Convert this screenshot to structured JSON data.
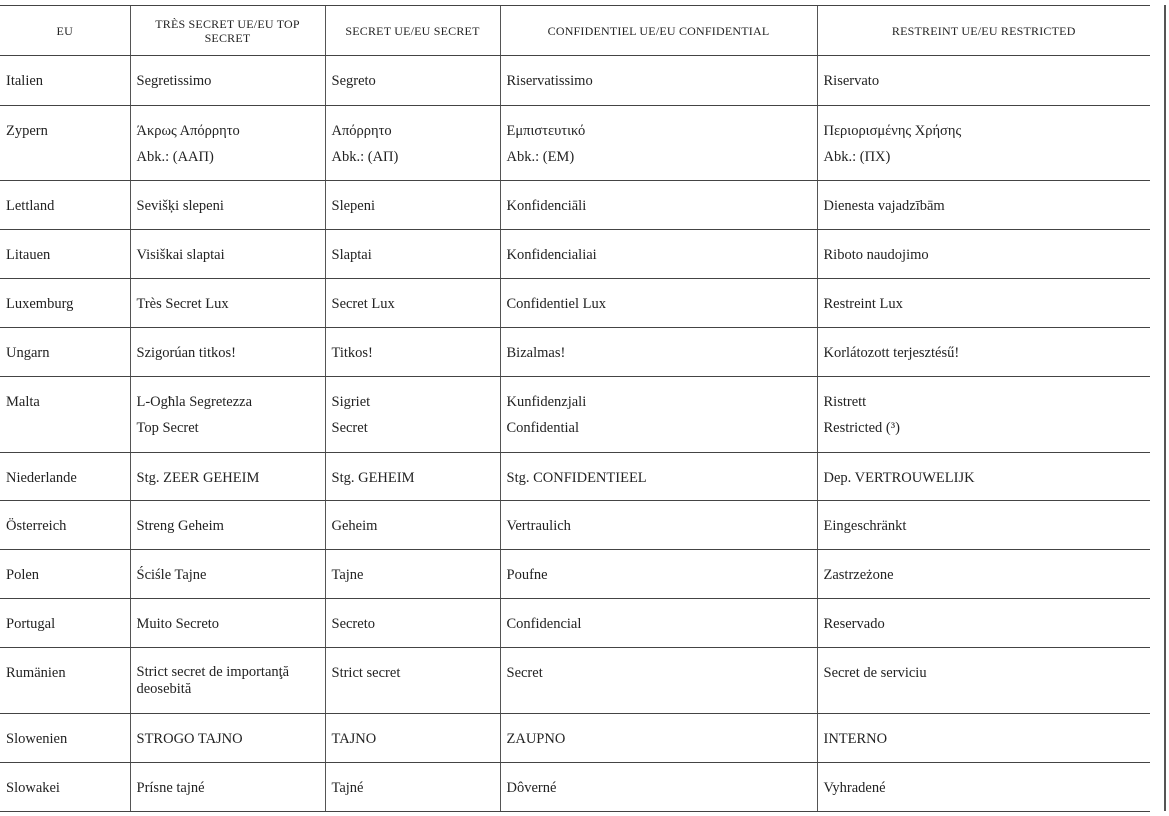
{
  "headers": [
    "EU",
    "TRÈS SECRET UE/EU TOP SECRET",
    "SECRET UE/EU SECRET",
    "CONFIDENTIEL UE/EU CONFIDENTIAL",
    "RESTREINT UE/EU RESTRICTED"
  ],
  "rows": [
    {
      "country": "Italien",
      "cells": [
        [
          "Segretissimo"
        ],
        [
          "Segreto"
        ],
        [
          "Riservatissimo"
        ],
        [
          "Riservato"
        ]
      ]
    },
    {
      "country": "Zypern",
      "cells": [
        [
          "Άκρως Απόρρητο",
          "Abk.: (ΑΑΠ)"
        ],
        [
          "Απόρρητο",
          "Abk.: (ΑΠ)"
        ],
        [
          "Εμπιστευτικό",
          "Abk.: (ΕΜ)"
        ],
        [
          "Περιορισμένης Χρήσης",
          "Abk.: (ΠΧ)"
        ]
      ]
    },
    {
      "country": "Lettland",
      "cells": [
        [
          "Sevišķi slepeni"
        ],
        [
          "Slepeni"
        ],
        [
          "Konfidenciāli"
        ],
        [
          "Dienesta vajadzībām"
        ]
      ]
    },
    {
      "country": "Litauen",
      "cells": [
        [
          "Visiškai slaptai"
        ],
        [
          "Slaptai"
        ],
        [
          "Konfidencialiai"
        ],
        [
          "Riboto naudojimo"
        ]
      ]
    },
    {
      "country": "Luxemburg",
      "cells": [
        [
          "Très Secret Lux"
        ],
        [
          "Secret Lux"
        ],
        [
          "Confidentiel Lux"
        ],
        [
          "Restreint Lux"
        ]
      ]
    },
    {
      "country": "Ungarn",
      "cells": [
        [
          "Szigorúan titkos!"
        ],
        [
          "Titkos!"
        ],
        [
          "Bizalmas!"
        ],
        [
          "Korlátozott terjesztésű!"
        ]
      ]
    },
    {
      "country": "Malta",
      "cells": [
        [
          "L-Ogħla Segretezza",
          "Top Secret"
        ],
        [
          "Sigriet",
          "Secret"
        ],
        [
          "Kunfidenzjali",
          "Confidential"
        ],
        [
          "Ristrett",
          "Restricted (³)"
        ]
      ]
    },
    {
      "country": "Niederlande",
      "cells": [
        [
          "Stg. ZEER GEHEIM"
        ],
        [
          "Stg. GEHEIM"
        ],
        [
          "Stg. CONFIDENTIEEL"
        ],
        [
          "Dep. VERTROUWELIJK"
        ]
      ]
    },
    {
      "country": "Österreich",
      "cells": [
        [
          "Streng Geheim"
        ],
        [
          "Geheim"
        ],
        [
          "Vertraulich"
        ],
        [
          "Eingeschränkt"
        ]
      ]
    },
    {
      "country": "Polen",
      "cells": [
        [
          "Ściśle Tajne"
        ],
        [
          "Tajne"
        ],
        [
          "Poufne"
        ],
        [
          "Zastrzeżone"
        ]
      ]
    },
    {
      "country": "Portugal",
      "cells": [
        [
          "Muito Secreto"
        ],
        [
          "Secreto"
        ],
        [
          "Confidencial"
        ],
        [
          "Reservado"
        ]
      ]
    },
    {
      "country": "Rumänien",
      "cells": [
        [
          "Strict secret de importanţă deosebită"
        ],
        [
          "Strict secret"
        ],
        [
          "Secret"
        ],
        [
          "Secret de serviciu"
        ]
      ]
    },
    {
      "country": "Slowenien",
      "cells": [
        [
          "STROGO TAJNO"
        ],
        [
          "TAJNO"
        ],
        [
          "ZAUPNO"
        ],
        [
          "INTERNO"
        ]
      ]
    },
    {
      "country": "Slowakei",
      "cells": [
        [
          "Prísne tajné"
        ],
        [
          "Tajné"
        ],
        [
          "Dôverné"
        ],
        [
          "Vyhradené"
        ]
      ]
    }
  ]
}
